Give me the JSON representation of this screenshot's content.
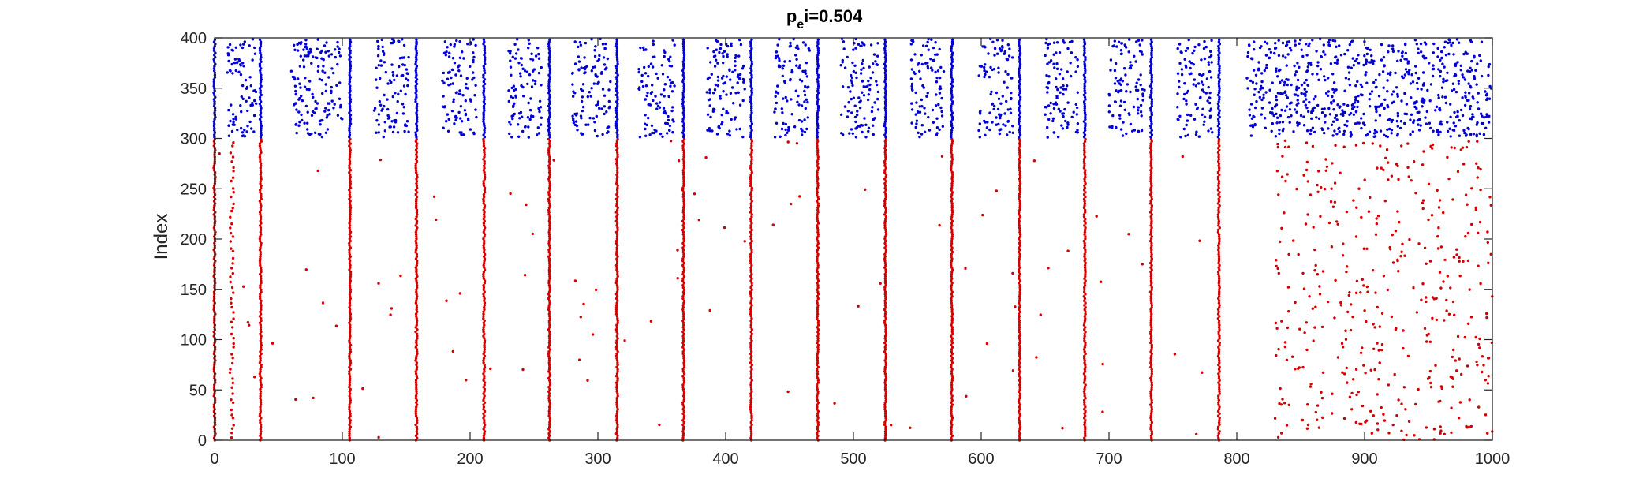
{
  "chart_data": {
    "type": "scatter",
    "title": {
      "main": "p",
      "sub": "e",
      "rest": "i=0.504"
    },
    "xlabel": "",
    "ylabel": "Index",
    "xlim": [
      0,
      1000
    ],
    "ylim": [
      0,
      400
    ],
    "xticks": [
      0,
      100,
      200,
      300,
      400,
      500,
      600,
      700,
      800,
      900,
      1000
    ],
    "yticks": [
      0,
      50,
      100,
      150,
      200,
      250,
      300,
      350,
      400
    ],
    "grid": false,
    "legend": "none",
    "populations": [
      {
        "color": "#d40000",
        "index_range": [
          0,
          300
        ]
      },
      {
        "color": "#0000d4",
        "index_range": [
          300,
          400
        ]
      }
    ],
    "synchronous_burst_times": [
      0,
      36,
      106,
      158,
      211,
      262,
      315,
      367,
      420,
      472,
      525,
      577,
      630,
      681,
      733,
      786
    ],
    "inhibitory_active_windows": [
      [
        10,
        33
      ],
      [
        60,
        100
      ],
      [
        125,
        152
      ],
      [
        178,
        205
      ],
      [
        230,
        256
      ],
      [
        280,
        310
      ],
      [
        332,
        360
      ],
      [
        385,
        415
      ],
      [
        438,
        466
      ],
      [
        490,
        520
      ],
      [
        545,
        571
      ],
      [
        598,
        625
      ],
      [
        650,
        676
      ],
      [
        700,
        728
      ],
      [
        753,
        781
      ],
      [
        808,
        1000
      ]
    ],
    "excitatory_asynchronous_range": [
      830,
      1000
    ]
  }
}
